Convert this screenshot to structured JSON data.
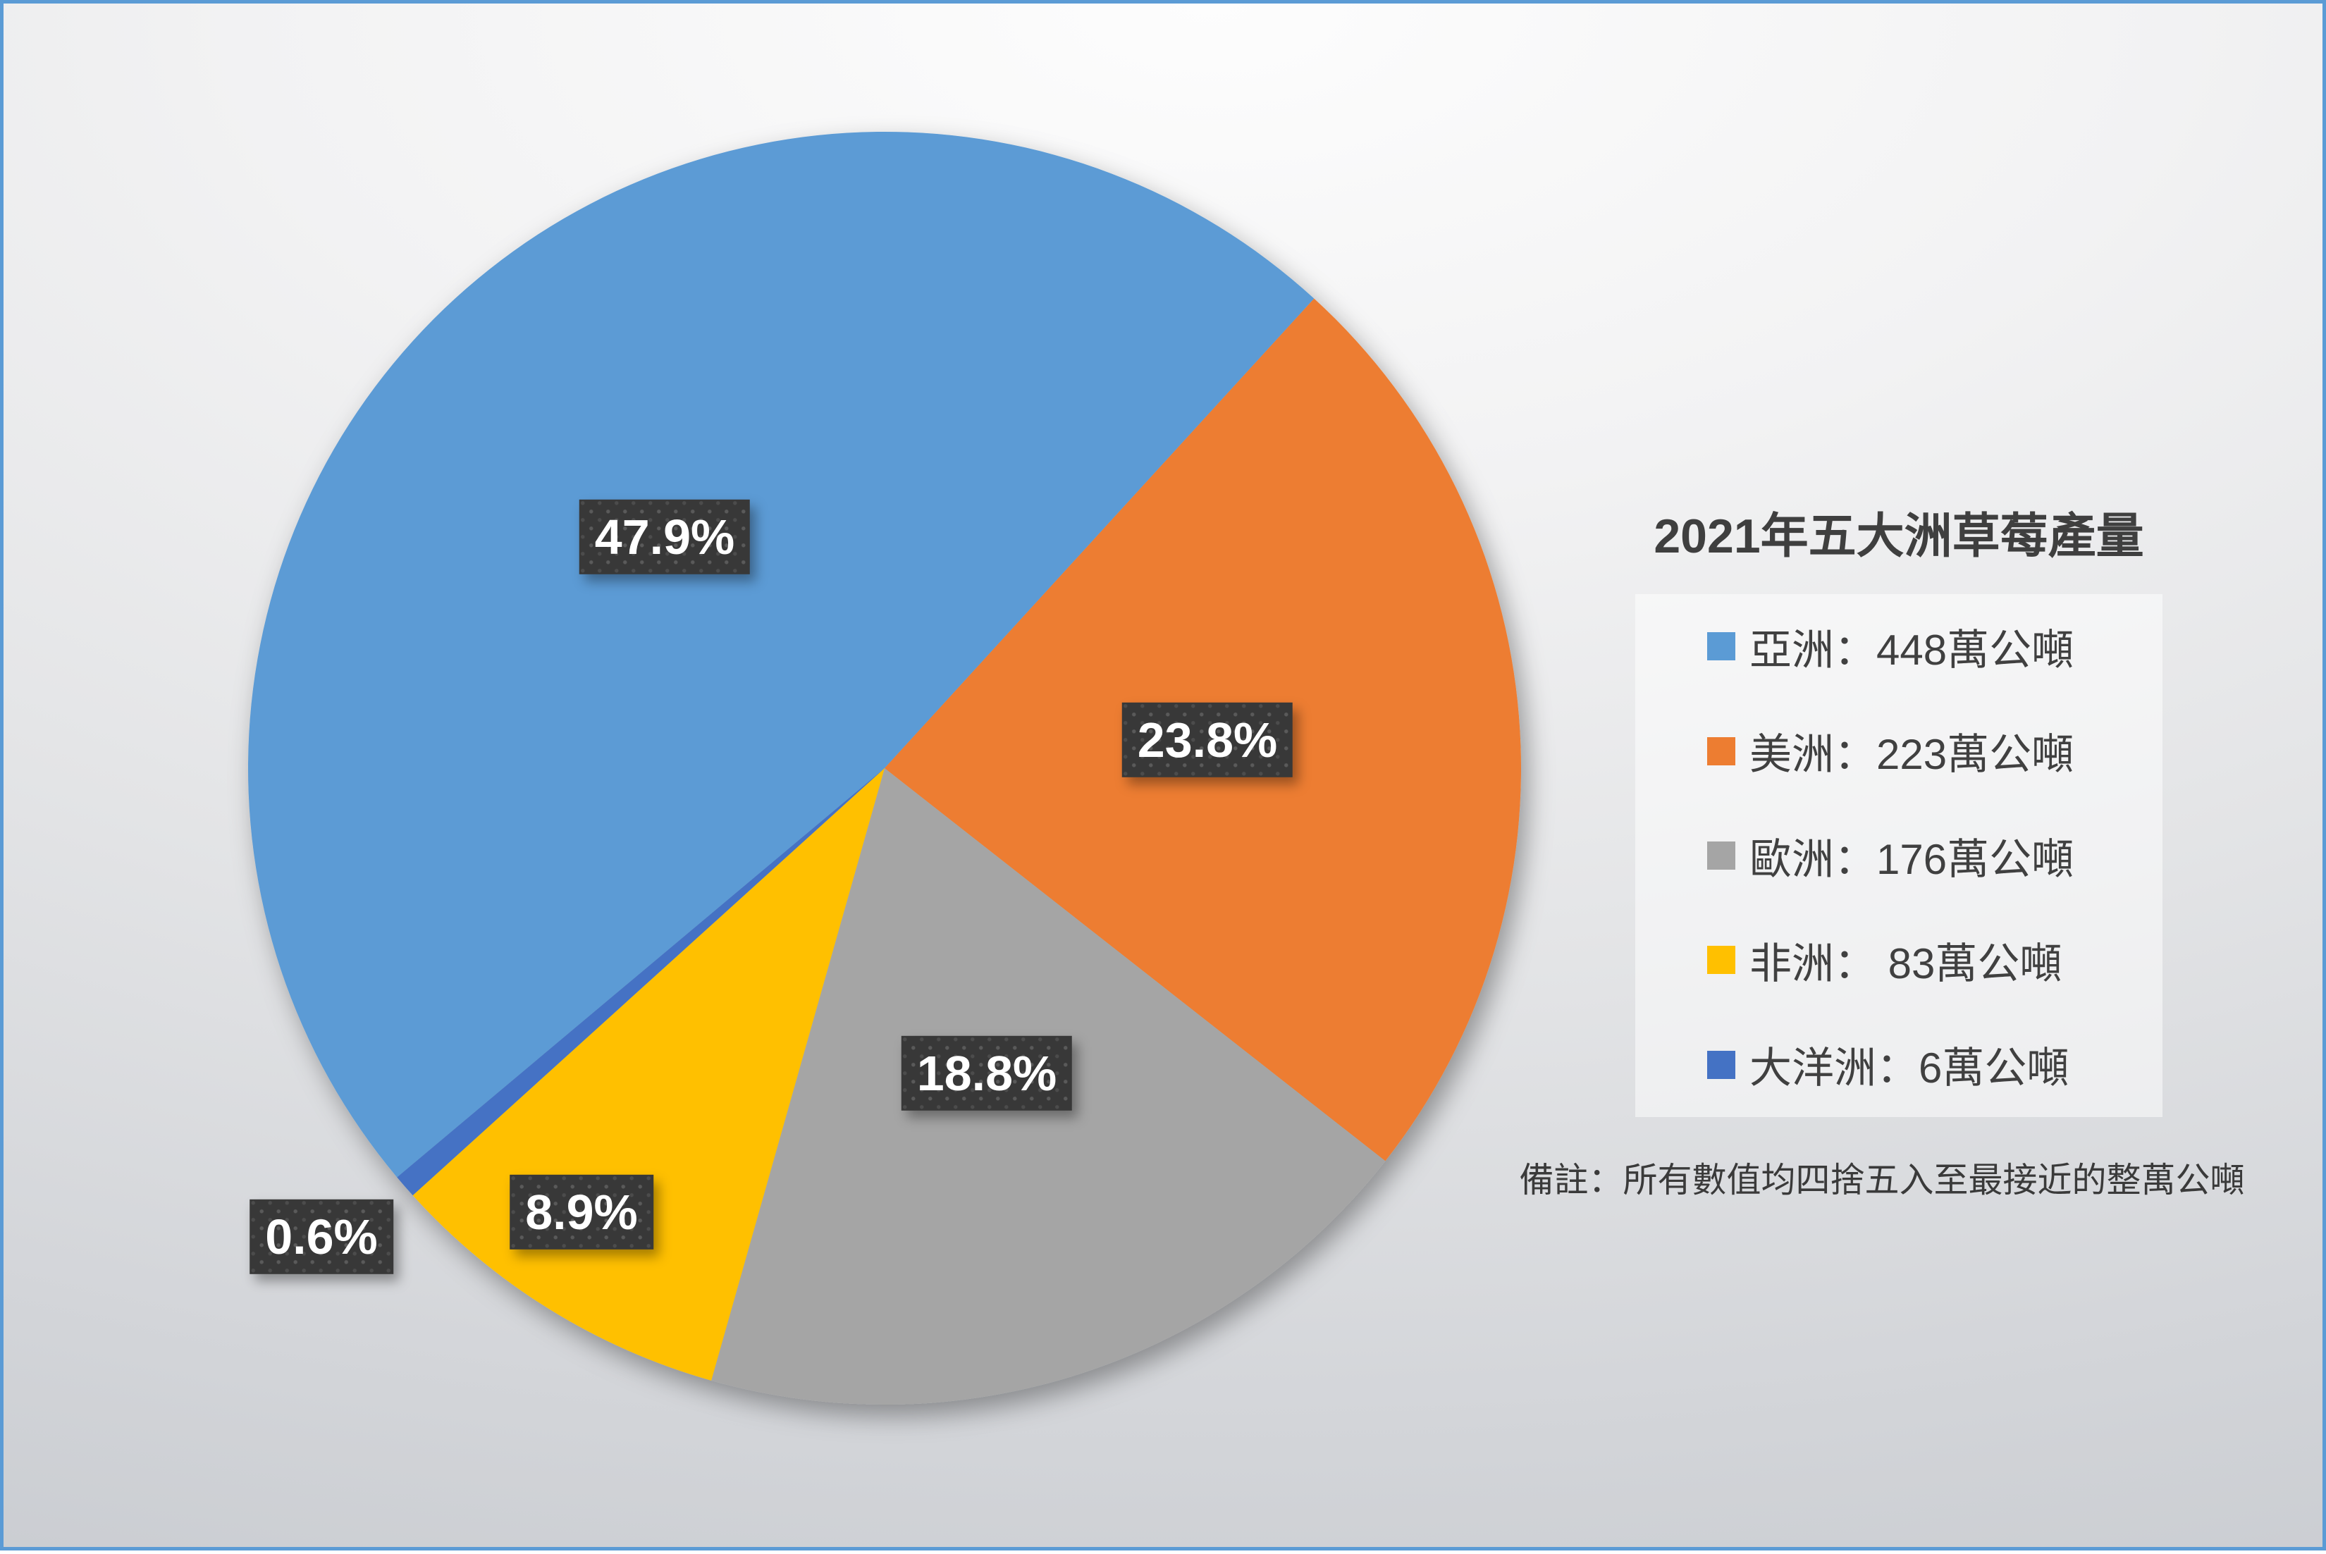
{
  "chart_data": {
    "type": "pie",
    "title": "2021年五大洲草莓產量",
    "note": "備註：所有數值均四捨五入至最接近的整萬公噸",
    "unit": "萬公噸",
    "legend_position": "right",
    "labels_shown_as": "percent",
    "first_slice_angle_deg_clockwise_from_top": 230,
    "slices": [
      {
        "id": "asia",
        "name": "亞洲",
        "value": 448,
        "pct": 47.9,
        "pct_label": "47.9%",
        "legend_label": "亞洲：448萬公噸",
        "color": "#5B9BD5"
      },
      {
        "id": "americas",
        "name": "美洲",
        "value": 223,
        "pct": 23.8,
        "pct_label": "23.8%",
        "legend_label": "美洲：223萬公噸",
        "color": "#ED7D31"
      },
      {
        "id": "europe",
        "name": "歐洲",
        "value": 176,
        "pct": 18.8,
        "pct_label": "18.8%",
        "legend_label": "歐洲：176萬公噸",
        "color": "#A5A5A5"
      },
      {
        "id": "africa",
        "name": "非洲",
        "value": 83,
        "pct": 8.9,
        "pct_label": "8.9%",
        "legend_label": "非洲： 83萬公噸",
        "color": "#FFC000"
      },
      {
        "id": "oceania",
        "name": "大洋洲",
        "value": 6,
        "pct": 0.6,
        "pct_label": "0.6%",
        "legend_label": "大洋洲：6萬公噸",
        "color": "#4472C4"
      }
    ]
  },
  "colors": {
    "frame_border": "#5B9BD5",
    "title_text": "#3F3F3F",
    "legend_text": "#404040",
    "note_text": "#3A3A3A",
    "label_box_bg": "#383838",
    "label_box_text": "#FFFFFF"
  }
}
